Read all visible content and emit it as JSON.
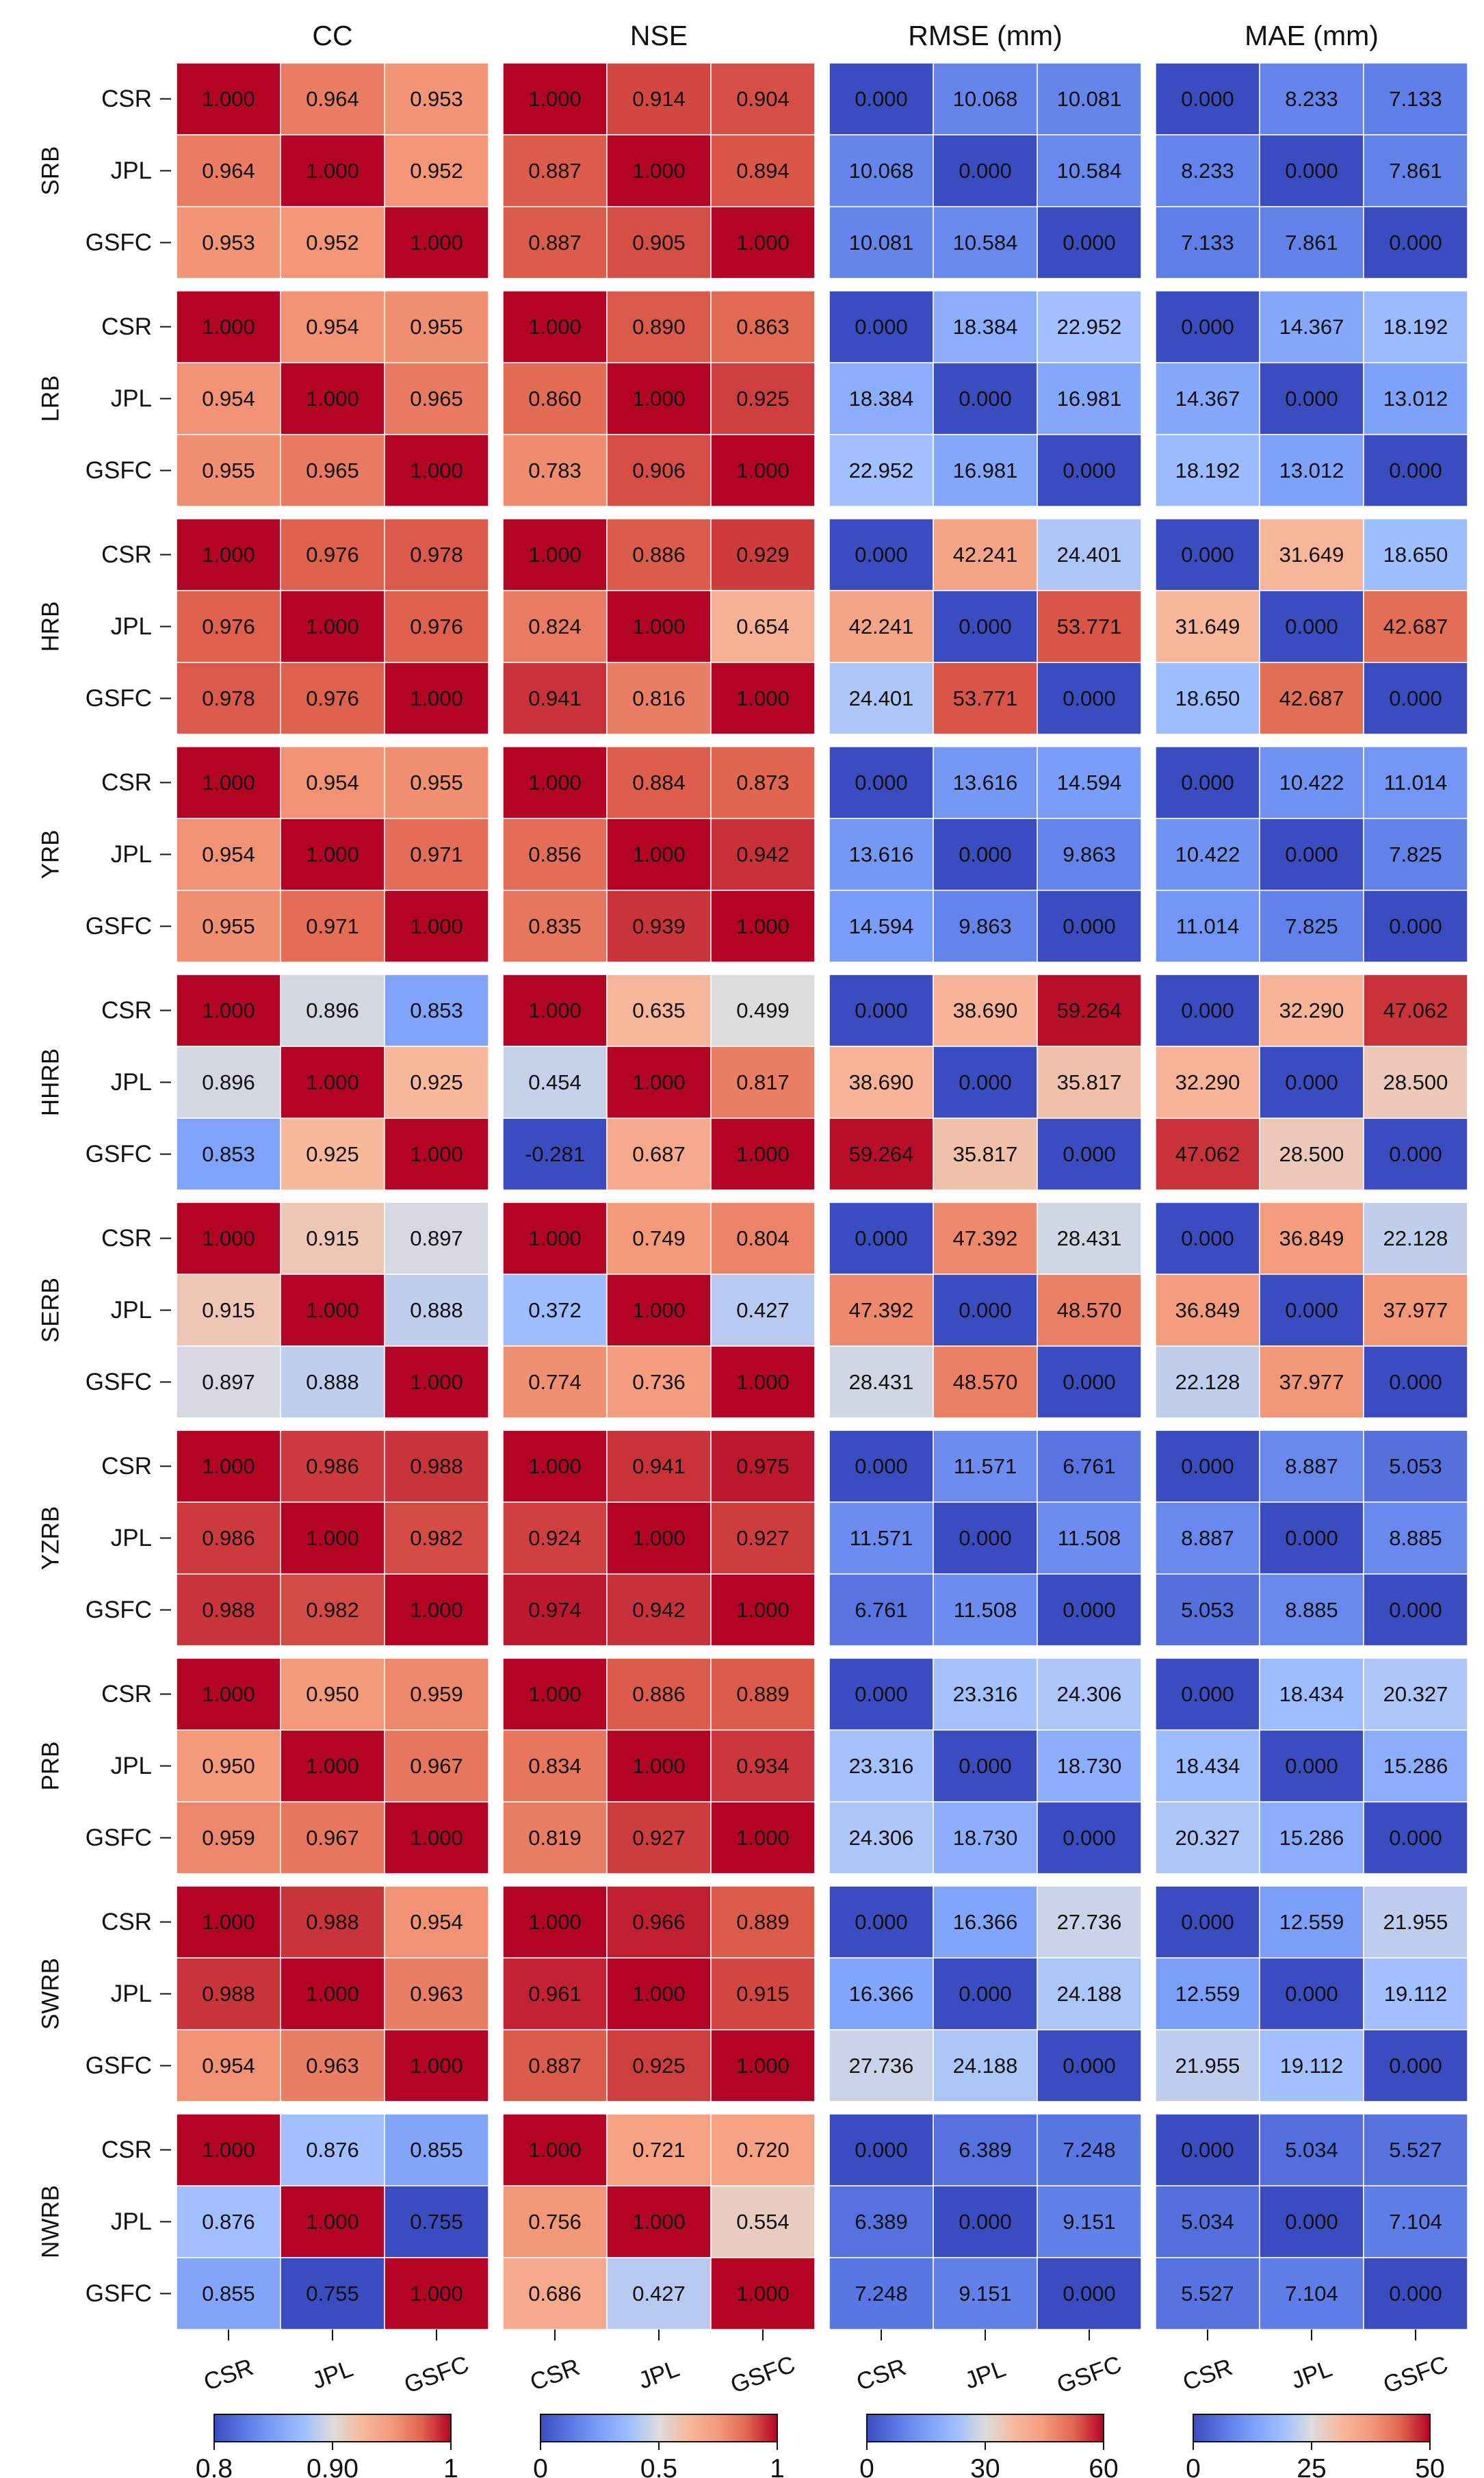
{
  "chart_data": {
    "type": "heatmap",
    "metrics": [
      {
        "id": "cc",
        "title": "CC",
        "vmin": 0.8,
        "vmax": 1.0,
        "cmap": "coolwarm",
        "colorbar_ticks": [
          0.8,
          0.9,
          1.0
        ],
        "colorbar_labels": [
          "0.8",
          "0.90",
          "1"
        ]
      },
      {
        "id": "nse",
        "title": "NSE",
        "vmin": 0.0,
        "vmax": 1.0,
        "cmap": "coolwarm",
        "colorbar_ticks": [
          0.0,
          0.5,
          1.0
        ],
        "colorbar_labels": [
          "0",
          "0.5",
          "1"
        ]
      },
      {
        "id": "rmse",
        "title": "RMSE (mm)",
        "vmin": 0,
        "vmax": 60,
        "cmap": "coolwarm",
        "colorbar_ticks": [
          0,
          30,
          60
        ],
        "colorbar_labels": [
          "0",
          "30",
          "60"
        ]
      },
      {
        "id": "mae",
        "title": "MAE (mm)",
        "vmin": 0,
        "vmax": 50,
        "cmap": "coolwarm",
        "colorbar_ticks": [
          0,
          25,
          50
        ],
        "colorbar_labels": [
          "0",
          "25",
          "50"
        ]
      }
    ],
    "row_labels": [
      "CSR",
      "JPL",
      "GSFC"
    ],
    "col_labels": [
      "CSR",
      "JPL",
      "GSFC"
    ],
    "basins": [
      {
        "name": "SRB",
        "cc": [
          [
            "1.000",
            "0.964",
            "0.953"
          ],
          [
            "0.964",
            "1.000",
            "0.952"
          ],
          [
            "0.953",
            "0.952",
            "1.000"
          ]
        ],
        "nse": [
          [
            "1.000",
            "0.914",
            "0.904"
          ],
          [
            "0.887",
            "1.000",
            "0.894"
          ],
          [
            "0.887",
            "0.905",
            "1.000"
          ]
        ],
        "rmse": [
          [
            "0.000",
            "10.068",
            "10.081"
          ],
          [
            "10.068",
            "0.000",
            "10.584"
          ],
          [
            "10.081",
            "10.584",
            "0.000"
          ]
        ],
        "mae": [
          [
            "0.000",
            "8.233",
            "7.133"
          ],
          [
            "8.233",
            "0.000",
            "7.861"
          ],
          [
            "7.133",
            "7.861",
            "0.000"
          ]
        ]
      },
      {
        "name": "LRB",
        "cc": [
          [
            "1.000",
            "0.954",
            "0.955"
          ],
          [
            "0.954",
            "1.000",
            "0.965"
          ],
          [
            "0.955",
            "0.965",
            "1.000"
          ]
        ],
        "nse": [
          [
            "1.000",
            "0.890",
            "0.863"
          ],
          [
            "0.860",
            "1.000",
            "0.925"
          ],
          [
            "0.783",
            "0.906",
            "1.000"
          ]
        ],
        "rmse": [
          [
            "0.000",
            "18.384",
            "22.952"
          ],
          [
            "18.384",
            "0.000",
            "16.981"
          ],
          [
            "22.952",
            "16.981",
            "0.000"
          ]
        ],
        "mae": [
          [
            "0.000",
            "14.367",
            "18.192"
          ],
          [
            "14.367",
            "0.000",
            "13.012"
          ],
          [
            "18.192",
            "13.012",
            "0.000"
          ]
        ]
      },
      {
        "name": "HRB",
        "cc": [
          [
            "1.000",
            "0.976",
            "0.978"
          ],
          [
            "0.976",
            "1.000",
            "0.976"
          ],
          [
            "0.978",
            "0.976",
            "1.000"
          ]
        ],
        "nse": [
          [
            "1.000",
            "0.886",
            "0.929"
          ],
          [
            "0.824",
            "1.000",
            "0.654"
          ],
          [
            "0.941",
            "0.816",
            "1.000"
          ]
        ],
        "rmse": [
          [
            "0.000",
            "42.241",
            "24.401"
          ],
          [
            "42.241",
            "0.000",
            "53.771"
          ],
          [
            "24.401",
            "53.771",
            "0.000"
          ]
        ],
        "mae": [
          [
            "0.000",
            "31.649",
            "18.650"
          ],
          [
            "31.649",
            "0.000",
            "42.687"
          ],
          [
            "18.650",
            "42.687",
            "0.000"
          ]
        ]
      },
      {
        "name": "YRB",
        "cc": [
          [
            "1.000",
            "0.954",
            "0.955"
          ],
          [
            "0.954",
            "1.000",
            "0.971"
          ],
          [
            "0.955",
            "0.971",
            "1.000"
          ]
        ],
        "nse": [
          [
            "1.000",
            "0.884",
            "0.873"
          ],
          [
            "0.856",
            "1.000",
            "0.942"
          ],
          [
            "0.835",
            "0.939",
            "1.000"
          ]
        ],
        "rmse": [
          [
            "0.000",
            "13.616",
            "14.594"
          ],
          [
            "13.616",
            "0.000",
            "9.863"
          ],
          [
            "14.594",
            "9.863",
            "0.000"
          ]
        ],
        "mae": [
          [
            "0.000",
            "10.422",
            "11.014"
          ],
          [
            "10.422",
            "0.000",
            "7.825"
          ],
          [
            "11.014",
            "7.825",
            "0.000"
          ]
        ]
      },
      {
        "name": "HHRB",
        "cc": [
          [
            "1.000",
            "0.896",
            "0.853"
          ],
          [
            "0.896",
            "1.000",
            "0.925"
          ],
          [
            "0.853",
            "0.925",
            "1.000"
          ]
        ],
        "nse": [
          [
            "1.000",
            "0.635",
            "0.499"
          ],
          [
            "0.454",
            "1.000",
            "0.817"
          ],
          [
            "-0.281",
            "0.687",
            "1.000"
          ]
        ],
        "rmse": [
          [
            "0.000",
            "38.690",
            "59.264"
          ],
          [
            "38.690",
            "0.000",
            "35.817"
          ],
          [
            "59.264",
            "35.817",
            "0.000"
          ]
        ],
        "mae": [
          [
            "0.000",
            "32.290",
            "47.062"
          ],
          [
            "32.290",
            "0.000",
            "28.500"
          ],
          [
            "47.062",
            "28.500",
            "0.000"
          ]
        ]
      },
      {
        "name": "SERB",
        "cc": [
          [
            "1.000",
            "0.915",
            "0.897"
          ],
          [
            "0.915",
            "1.000",
            "0.888"
          ],
          [
            "0.897",
            "0.888",
            "1.000"
          ]
        ],
        "nse": [
          [
            "1.000",
            "0.749",
            "0.804"
          ],
          [
            "0.372",
            "1.000",
            "0.427"
          ],
          [
            "0.774",
            "0.736",
            "1.000"
          ]
        ],
        "rmse": [
          [
            "0.000",
            "47.392",
            "28.431"
          ],
          [
            "47.392",
            "0.000",
            "48.570"
          ],
          [
            "28.431",
            "48.570",
            "0.000"
          ]
        ],
        "mae": [
          [
            "0.000",
            "36.849",
            "22.128"
          ],
          [
            "36.849",
            "0.000",
            "37.977"
          ],
          [
            "22.128",
            "37.977",
            "0.000"
          ]
        ]
      },
      {
        "name": "YZRB",
        "cc": [
          [
            "1.000",
            "0.986",
            "0.988"
          ],
          [
            "0.986",
            "1.000",
            "0.982"
          ],
          [
            "0.988",
            "0.982",
            "1.000"
          ]
        ],
        "nse": [
          [
            "1.000",
            "0.941",
            "0.975"
          ],
          [
            "0.924",
            "1.000",
            "0.927"
          ],
          [
            "0.974",
            "0.942",
            "1.000"
          ]
        ],
        "rmse": [
          [
            "0.000",
            "11.571",
            "6.761"
          ],
          [
            "11.571",
            "0.000",
            "11.508"
          ],
          [
            "6.761",
            "11.508",
            "0.000"
          ]
        ],
        "mae": [
          [
            "0.000",
            "8.887",
            "5.053"
          ],
          [
            "8.887",
            "0.000",
            "8.885"
          ],
          [
            "5.053",
            "8.885",
            "0.000"
          ]
        ]
      },
      {
        "name": "PRB",
        "cc": [
          [
            "1.000",
            "0.950",
            "0.959"
          ],
          [
            "0.950",
            "1.000",
            "0.967"
          ],
          [
            "0.959",
            "0.967",
            "1.000"
          ]
        ],
        "nse": [
          [
            "1.000",
            "0.886",
            "0.889"
          ],
          [
            "0.834",
            "1.000",
            "0.934"
          ],
          [
            "0.819",
            "0.927",
            "1.000"
          ]
        ],
        "rmse": [
          [
            "0.000",
            "23.316",
            "24.306"
          ],
          [
            "23.316",
            "0.000",
            "18.730"
          ],
          [
            "24.306",
            "18.730",
            "0.000"
          ]
        ],
        "mae": [
          [
            "0.000",
            "18.434",
            "20.327"
          ],
          [
            "18.434",
            "0.000",
            "15.286"
          ],
          [
            "20.327",
            "15.286",
            "0.000"
          ]
        ]
      },
      {
        "name": "SWRB",
        "cc": [
          [
            "1.000",
            "0.988",
            "0.954"
          ],
          [
            "0.988",
            "1.000",
            "0.963"
          ],
          [
            "0.954",
            "0.963",
            "1.000"
          ]
        ],
        "nse": [
          [
            "1.000",
            "0.966",
            "0.889"
          ],
          [
            "0.961",
            "1.000",
            "0.915"
          ],
          [
            "0.887",
            "0.925",
            "1.000"
          ]
        ],
        "rmse": [
          [
            "0.000",
            "16.366",
            "27.736"
          ],
          [
            "16.366",
            "0.000",
            "24.188"
          ],
          [
            "27.736",
            "24.188",
            "0.000"
          ]
        ],
        "mae": [
          [
            "0.000",
            "12.559",
            "21.955"
          ],
          [
            "12.559",
            "0.000",
            "19.112"
          ],
          [
            "21.955",
            "19.112",
            "0.000"
          ]
        ]
      },
      {
        "name": "NWRB",
        "cc": [
          [
            "1.000",
            "0.876",
            "0.855"
          ],
          [
            "0.876",
            "1.000",
            "0.755"
          ],
          [
            "0.855",
            "0.755",
            "1.000"
          ]
        ],
        "nse": [
          [
            "1.000",
            "0.721",
            "0.720"
          ],
          [
            "0.756",
            "1.000",
            "0.554"
          ],
          [
            "0.686",
            "0.427",
            "1.000"
          ]
        ],
        "rmse": [
          [
            "0.000",
            "6.389",
            "7.248"
          ],
          [
            "6.389",
            "0.000",
            "9.151"
          ],
          [
            "7.248",
            "9.151",
            "0.000"
          ]
        ],
        "mae": [
          [
            "0.000",
            "5.034",
            "5.527"
          ],
          [
            "5.034",
            "0.000",
            "7.104"
          ],
          [
            "5.527",
            "7.104",
            "0.000"
          ]
        ]
      }
    ]
  }
}
